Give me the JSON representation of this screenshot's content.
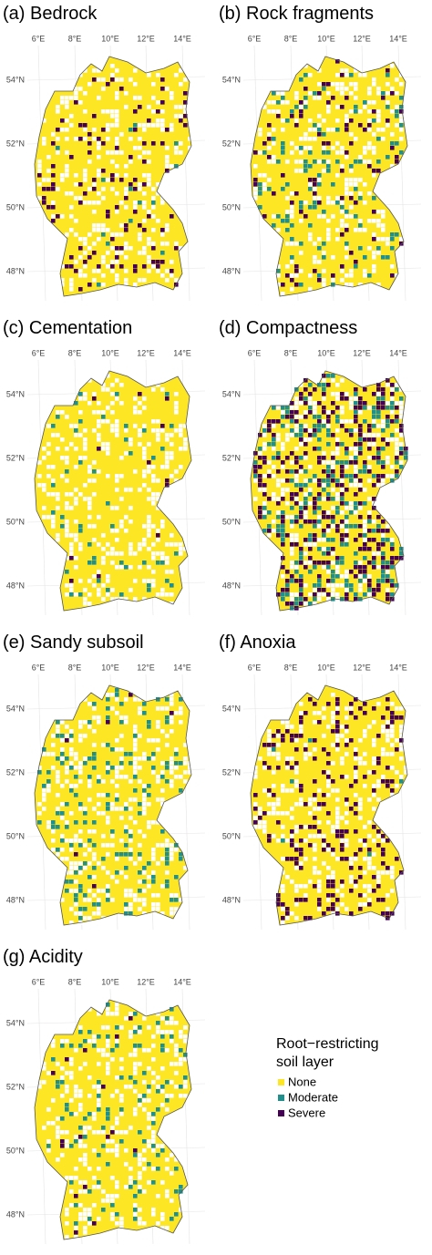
{
  "panels": [
    {
      "title": "(a) Bedrock"
    },
    {
      "title": "(b) Rock fragments"
    },
    {
      "title": "(c) Cementation"
    },
    {
      "title": "(d) Compactness"
    },
    {
      "title": "(e) Sandy subsoil"
    },
    {
      "title": "(f) Anoxia"
    },
    {
      "title": "(g) Acidity"
    }
  ],
  "lon_labels": [
    "6°E",
    "8°E",
    "10°E",
    "12°E",
    "14°E"
  ],
  "lat_labels": [
    "54°N",
    "52°N",
    "50°N",
    "48°N"
  ],
  "legend": {
    "title_lines": [
      "Root−restricting",
      "soil layer"
    ],
    "items": [
      {
        "label": "None",
        "color": "#FDE725"
      },
      {
        "label": "Moderate",
        "color": "#21908C"
      },
      {
        "label": "Severe",
        "color": "#440154"
      }
    ]
  }
}
